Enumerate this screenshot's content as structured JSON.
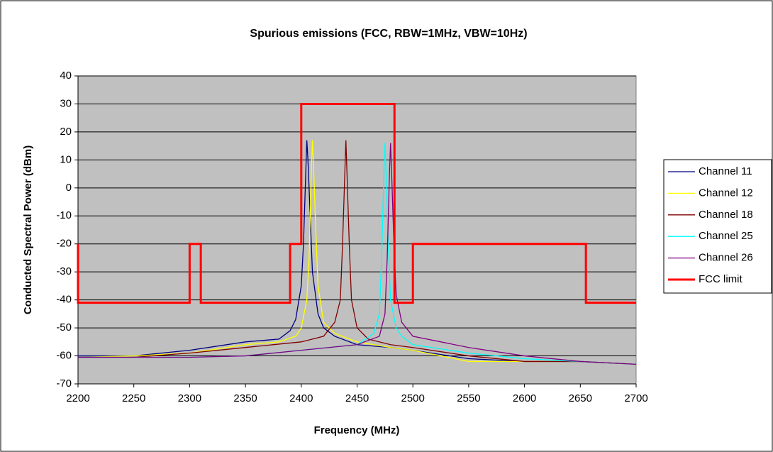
{
  "chart_data": {
    "type": "line",
    "title": "Spurious emissions (FCC, RBW=1MHz, VBW=10Hz)",
    "x_label": "Frequency (MHz)",
    "y_label": "Conducted Spectral Power (dBm)",
    "xlim": [
      2200,
      2700
    ],
    "xticks": [
      2200,
      2250,
      2300,
      2350,
      2400,
      2450,
      2500,
      2550,
      2600,
      2650,
      2700
    ],
    "ylim": [
      -70,
      40
    ],
    "yticks": [
      -70,
      -60,
      -50,
      -40,
      -30,
      -20,
      -10,
      0,
      10,
      20,
      30,
      40
    ],
    "grid": true,
    "legend": "right",
    "series": [
      {
        "name": "Channel 11",
        "color": "#000080",
        "x": [
          2200,
          2250,
          2300,
          2350,
          2380,
          2390,
          2395,
          2400,
          2402,
          2404,
          2405,
          2406,
          2408,
          2410,
          2415,
          2420,
          2430,
          2450,
          2480,
          2500,
          2550,
          2600,
          2650,
          2700
        ],
        "values": [
          -60,
          -60,
          -58,
          -55,
          -54,
          -51,
          -47,
          -35,
          -20,
          5,
          17,
          10,
          -10,
          -30,
          -45,
          -50,
          -53,
          -56,
          -57,
          -58,
          -61,
          -62,
          -62,
          -63
        ]
      },
      {
        "name": "Channel 12",
        "color": "#ffff00",
        "x": [
          2200,
          2250,
          2300,
          2350,
          2380,
          2395,
          2400,
          2405,
          2407,
          2409,
          2410,
          2411,
          2413,
          2415,
          2420,
          2430,
          2450,
          2480,
          2500,
          2550,
          2600,
          2650,
          2700
        ],
        "values": [
          -60.5,
          -60,
          -59,
          -56,
          -55,
          -53,
          -50,
          -40,
          -25,
          5,
          17,
          8,
          -15,
          -35,
          -48,
          -52,
          -55,
          -57,
          -58,
          -62,
          -62,
          -62,
          -63
        ]
      },
      {
        "name": "Channel 18",
        "color": "#800000",
        "x": [
          2200,
          2250,
          2300,
          2350,
          2400,
          2420,
          2430,
          2435,
          2437,
          2439,
          2440,
          2441,
          2443,
          2445,
          2450,
          2460,
          2480,
          2500,
          2550,
          2600,
          2650,
          2700
        ],
        "values": [
          -60.5,
          -60.5,
          -59,
          -57,
          -55,
          -53,
          -48,
          -40,
          -20,
          5,
          17,
          5,
          -20,
          -40,
          -50,
          -54,
          -56,
          -57,
          -60,
          -62,
          -62,
          -63
        ]
      },
      {
        "name": "Channel 25",
        "color": "#00ffff",
        "x": [
          2200,
          2300,
          2350,
          2400,
          2450,
          2465,
          2470,
          2472,
          2474,
          2475,
          2476,
          2478,
          2480,
          2485,
          2490,
          2500,
          2550,
          2600,
          2650,
          2700
        ],
        "values": [
          -60.5,
          -60.5,
          -60,
          -58,
          -56,
          -52,
          -45,
          -25,
          5,
          16,
          5,
          -20,
          -40,
          -50,
          -53,
          -56,
          -59,
          -61,
          -62,
          -63
        ]
      },
      {
        "name": "Channel 26",
        "color": "#800080",
        "x": [
          2200,
          2300,
          2350,
          2400,
          2450,
          2470,
          2475,
          2477,
          2479,
          2480,
          2481,
          2483,
          2485,
          2490,
          2500,
          2550,
          2600,
          2650,
          2700
        ],
        "values": [
          -60.5,
          -60.5,
          -60,
          -58,
          -56,
          -53,
          -45,
          -25,
          5,
          16,
          5,
          -20,
          -38,
          -48,
          -53,
          -57,
          -60,
          -62,
          -63
        ]
      },
      {
        "name": "FCC limit",
        "color": "#ff0000",
        "x": [
          2200,
          2200,
          2300,
          2300,
          2310,
          2310,
          2390,
          2390,
          2400,
          2400,
          2483.5,
          2483.5,
          2500,
          2500,
          2655,
          2655,
          2700
        ],
        "values": [
          -20,
          -41,
          -41,
          -20,
          -20,
          -41,
          -41,
          -20,
          -20,
          30,
          30,
          -41,
          -41,
          -20,
          -20,
          -41,
          -41
        ]
      }
    ]
  }
}
